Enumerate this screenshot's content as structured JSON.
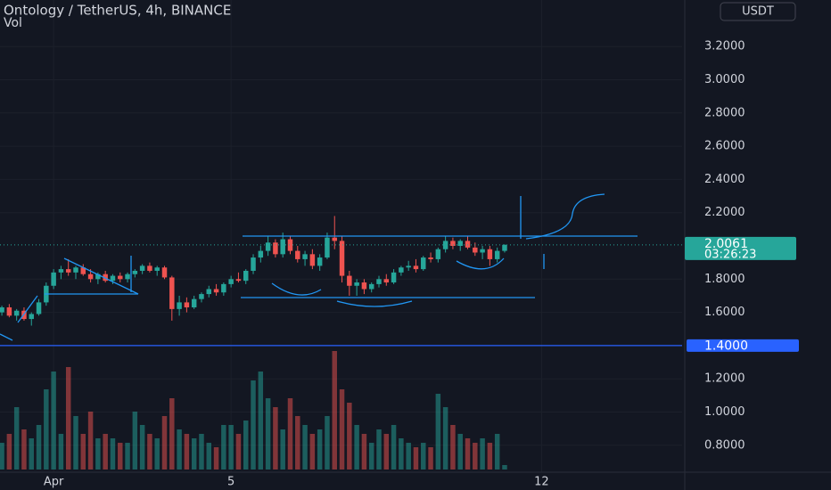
{
  "chart_data": {
    "type": "candlestick",
    "title": "Ontology / TetherUS, 4h, BINANCE",
    "volume_label": "Vol",
    "currency": "USDT",
    "countdown": "03:26:23",
    "last_price_label": "2.0061",
    "up_color": "#26a69a",
    "down_color": "#ef5350",
    "xlim": [
      -0.25,
      92
    ],
    "ylim": [
      0.638,
      3.48
    ],
    "volume_lim": [
      0,
      140
    ],
    "xticks": [
      {
        "value": 7,
        "label": "Apr"
      },
      {
        "value": 31,
        "label": "5"
      },
      {
        "value": 73,
        "label": "12"
      }
    ],
    "yticks": [
      {
        "value": 0.8,
        "label": "0.8000"
      },
      {
        "value": 1.0,
        "label": "1.0000"
      },
      {
        "value": 1.2,
        "label": "1.2000"
      },
      {
        "value": 1.6,
        "label": "1.6000"
      },
      {
        "value": 1.8,
        "label": "1.8000"
      },
      {
        "value": 2.2,
        "label": "2.2000"
      },
      {
        "value": 2.4,
        "label": "2.4000"
      },
      {
        "value": 2.6,
        "label": "2.6000"
      },
      {
        "value": 2.8,
        "label": "2.8000"
      },
      {
        "value": 3.0,
        "label": "3.0000"
      },
      {
        "value": 3.2,
        "label": "3.2000"
      }
    ],
    "price_lines": [
      {
        "value": 1.4,
        "label": "1.4000",
        "color": "#2962ff"
      }
    ],
    "open": [
      1.6,
      1.63,
      1.58,
      1.61,
      1.56,
      1.59,
      1.66,
      1.76,
      1.84,
      1.86,
      1.84,
      1.87,
      1.83,
      1.8,
      1.83,
      1.79,
      1.82,
      1.8,
      1.83,
      1.85,
      1.88,
      1.85,
      1.87,
      1.81,
      1.62,
      1.66,
      1.63,
      1.68,
      1.71,
      1.74,
      1.72,
      1.77,
      1.8,
      1.79,
      1.85,
      1.93,
      1.97,
      2.02,
      1.95,
      2.04,
      1.97,
      1.92,
      1.95,
      1.88,
      1.93,
      2.05,
      2.03,
      1.82,
      1.76,
      1.78,
      1.74,
      1.77,
      1.8,
      1.78,
      1.84,
      1.87,
      1.88,
      1.86,
      1.93,
      1.92,
      1.98,
      2.03,
      2.0,
      2.03,
      1.99,
      1.96,
      1.98,
      1.92,
      1.97
    ],
    "high": [
      1.64,
      1.65,
      1.62,
      1.63,
      1.6,
      1.68,
      1.78,
      1.86,
      1.88,
      1.92,
      1.88,
      1.89,
      1.86,
      1.84,
      1.85,
      1.83,
      1.84,
      1.84,
      1.86,
      1.89,
      1.9,
      1.88,
      1.88,
      1.82,
      1.7,
      1.69,
      1.7,
      1.72,
      1.76,
      1.77,
      1.78,
      1.82,
      1.84,
      1.86,
      1.95,
      2.0,
      2.06,
      2.04,
      2.08,
      2.06,
      2.0,
      1.97,
      1.98,
      1.95,
      2.08,
      2.18,
      2.06,
      1.85,
      1.8,
      1.8,
      1.78,
      1.82,
      1.83,
      1.86,
      1.88,
      1.91,
      1.92,
      1.94,
      1.96,
      1.99,
      2.06,
      2.05,
      2.04,
      2.06,
      2.02,
      2.0,
      2.0,
      1.99,
      2.01
    ],
    "low": [
      1.58,
      1.57,
      1.55,
      1.55,
      1.52,
      1.58,
      1.64,
      1.74,
      1.8,
      1.82,
      1.8,
      1.82,
      1.78,
      1.77,
      1.78,
      1.77,
      1.78,
      1.78,
      1.81,
      1.83,
      1.84,
      1.82,
      1.8,
      1.55,
      1.58,
      1.6,
      1.62,
      1.66,
      1.69,
      1.7,
      1.7,
      1.75,
      1.78,
      1.77,
      1.83,
      1.9,
      1.94,
      1.93,
      1.93,
      1.95,
      1.9,
      1.88,
      1.86,
      1.85,
      1.92,
      1.98,
      1.78,
      1.7,
      1.7,
      1.71,
      1.72,
      1.75,
      1.76,
      1.77,
      1.82,
      1.85,
      1.84,
      1.85,
      1.9,
      1.9,
      1.96,
      1.98,
      1.97,
      1.98,
      1.94,
      1.92,
      1.88,
      1.9,
      1.96
    ],
    "close": [
      1.63,
      1.58,
      1.61,
      1.56,
      1.59,
      1.66,
      1.76,
      1.84,
      1.86,
      1.84,
      1.87,
      1.83,
      1.8,
      1.83,
      1.79,
      1.82,
      1.8,
      1.83,
      1.85,
      1.88,
      1.85,
      1.87,
      1.81,
      1.62,
      1.66,
      1.63,
      1.68,
      1.71,
      1.74,
      1.72,
      1.77,
      1.8,
      1.79,
      1.85,
      1.93,
      1.97,
      2.02,
      1.95,
      2.04,
      1.97,
      1.92,
      1.95,
      1.88,
      1.93,
      2.05,
      2.03,
      1.82,
      1.76,
      1.78,
      1.74,
      1.77,
      1.8,
      1.78,
      1.84,
      1.87,
      1.88,
      1.86,
      1.93,
      1.92,
      1.98,
      2.03,
      2.0,
      2.03,
      1.99,
      1.96,
      1.98,
      1.92,
      1.97,
      2.0061
    ],
    "volume": [
      30,
      40,
      70,
      45,
      35,
      50,
      90,
      110,
      40,
      115,
      60,
      40,
      65,
      35,
      40,
      35,
      30,
      30,
      65,
      50,
      40,
      35,
      60,
      80,
      45,
      40,
      35,
      40,
      30,
      25,
      50,
      50,
      40,
      55,
      100,
      110,
      80,
      70,
      45,
      80,
      60,
      50,
      40,
      45,
      60,
      133,
      90,
      75,
      50,
      40,
      30,
      45,
      40,
      50,
      35,
      30,
      25,
      30,
      25,
      85,
      70,
      50,
      40,
      35,
      30,
      35,
      30,
      40,
      5
    ]
  }
}
